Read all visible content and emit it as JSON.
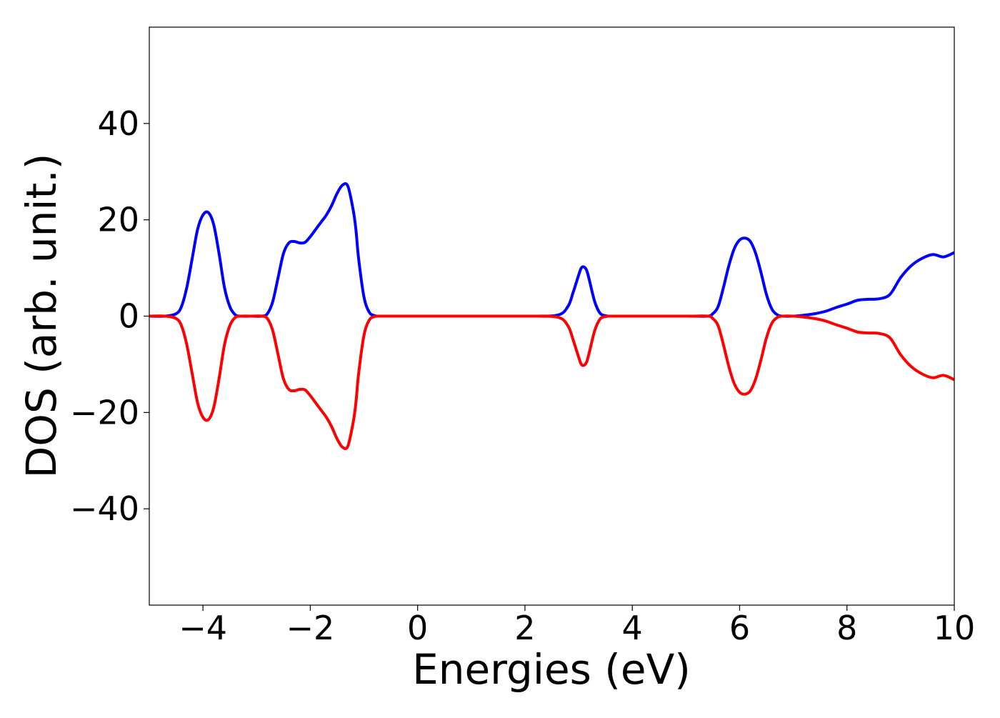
{
  "chart_data": {
    "type": "line",
    "xlabel": "Energies (eV)",
    "ylabel": "DOS (arb. unit.)",
    "xlim": [
      -5,
      10
    ],
    "ylim": [
      -60,
      60
    ],
    "x_ticks": [
      -4,
      -2,
      0,
      2,
      4,
      6,
      8,
      10
    ],
    "y_ticks": [
      -40,
      -20,
      0,
      20,
      40
    ],
    "x_tick_labels": [
      "−4",
      "−2",
      "0",
      "2",
      "4",
      "6",
      "8",
      "10"
    ],
    "y_tick_labels": [
      "−40",
      "−20",
      "0",
      "20",
      "40"
    ],
    "grid": false,
    "legend": "none",
    "series": [
      {
        "color": "#0000ff",
        "x": [
          -5.0,
          -4.7,
          -4.5,
          -4.4,
          -4.3,
          -4.2,
          -4.1,
          -4.0,
          -3.9,
          -3.8,
          -3.7,
          -3.6,
          -3.5,
          -3.4,
          -3.3,
          -3.1,
          -2.9,
          -2.8,
          -2.7,
          -2.6,
          -2.5,
          -2.4,
          -2.3,
          -2.2,
          -2.1,
          -2.0,
          -1.9,
          -1.8,
          -1.7,
          -1.6,
          -1.5,
          -1.4,
          -1.3,
          -1.2,
          -1.15,
          -1.1,
          -1.0,
          -0.9,
          -0.8,
          -0.7,
          -0.6,
          -0.5,
          0.0,
          1.0,
          2.0,
          2.6,
          2.8,
          2.9,
          3.0,
          3.05,
          3.1,
          3.15,
          3.2,
          3.3,
          3.4,
          3.5,
          3.6,
          4.0,
          5.0,
          5.4,
          5.5,
          5.6,
          5.7,
          5.8,
          5.9,
          6.0,
          6.1,
          6.2,
          6.3,
          6.4,
          6.5,
          6.6,
          6.7,
          6.8,
          7.0,
          7.2,
          7.4,
          7.6,
          7.8,
          8.0,
          8.2,
          8.4,
          8.6,
          8.8,
          9.0,
          9.2,
          9.4,
          9.6,
          9.8,
          10.0
        ],
        "y": [
          0,
          0,
          0.5,
          2,
          6,
          12,
          18,
          21,
          21.5,
          19,
          13,
          6,
          2,
          0.3,
          0,
          0,
          0,
          0.5,
          3,
          8,
          13,
          15.2,
          15.5,
          15.2,
          15.3,
          16.5,
          18,
          19.5,
          21,
          23,
          25.5,
          27.2,
          27,
          22,
          18,
          12,
          4,
          0.8,
          0.1,
          0,
          0,
          0,
          0,
          0,
          0,
          0.2,
          2,
          5,
          8.5,
          10,
          10.2,
          9.5,
          7.5,
          3,
          0.6,
          0.1,
          0,
          0,
          0,
          0,
          0.5,
          2,
          6,
          10.5,
          14,
          15.8,
          16.2,
          15.5,
          13,
          9,
          4.5,
          1.5,
          0.3,
          0,
          0,
          0.2,
          0.5,
          1,
          1.8,
          2.5,
          3.3,
          3.5,
          3.6,
          4.5,
          8,
          10.5,
          12,
          12.8,
          12.3,
          13.2
        ]
      },
      {
        "color": "#ff0000",
        "x": [
          -5.0,
          -4.7,
          -4.5,
          -4.4,
          -4.3,
          -4.2,
          -4.1,
          -4.0,
          -3.9,
          -3.8,
          -3.7,
          -3.6,
          -3.5,
          -3.4,
          -3.3,
          -3.1,
          -2.9,
          -2.8,
          -2.7,
          -2.6,
          -2.5,
          -2.4,
          -2.3,
          -2.2,
          -2.1,
          -2.0,
          -1.9,
          -1.8,
          -1.7,
          -1.6,
          -1.5,
          -1.4,
          -1.3,
          -1.2,
          -1.15,
          -1.1,
          -1.0,
          -0.9,
          -0.8,
          -0.7,
          -0.6,
          -0.5,
          0.0,
          1.0,
          2.0,
          2.6,
          2.8,
          2.9,
          3.0,
          3.05,
          3.1,
          3.15,
          3.2,
          3.3,
          3.4,
          3.5,
          3.6,
          4.0,
          5.0,
          5.4,
          5.5,
          5.6,
          5.7,
          5.8,
          5.9,
          6.0,
          6.1,
          6.2,
          6.3,
          6.4,
          6.5,
          6.6,
          6.7,
          6.8,
          7.0,
          7.2,
          7.4,
          7.6,
          7.8,
          8.0,
          8.2,
          8.4,
          8.6,
          8.8,
          9.0,
          9.2,
          9.4,
          9.6,
          9.8,
          10.0
        ],
        "y": [
          0,
          0,
          -0.5,
          -2,
          -6,
          -12,
          -18,
          -21,
          -21.5,
          -19,
          -13,
          -6,
          -2,
          -0.3,
          0,
          0,
          0,
          -0.5,
          -3,
          -8,
          -13,
          -15.2,
          -15.5,
          -15.2,
          -15.3,
          -16.5,
          -18,
          -19.5,
          -21,
          -23,
          -25.5,
          -27.2,
          -27,
          -22,
          -18,
          -12,
          -4,
          -0.8,
          -0.1,
          0,
          0,
          0,
          0,
          0,
          0,
          -0.2,
          -2,
          -5,
          -8.5,
          -10,
          -10.2,
          -9.5,
          -7.5,
          -3,
          -0.6,
          -0.1,
          0,
          0,
          0,
          0,
          -0.5,
          -2,
          -6,
          -10.5,
          -14,
          -15.8,
          -16.2,
          -15.5,
          -13,
          -9,
          -4.5,
          -1.5,
          -0.3,
          0,
          0,
          -0.2,
          -0.5,
          -1,
          -1.8,
          -2.5,
          -3.3,
          -3.5,
          -3.6,
          -4.5,
          -8,
          -10.5,
          -12,
          -12.8,
          -12.3,
          -13.2
        ]
      }
    ]
  }
}
